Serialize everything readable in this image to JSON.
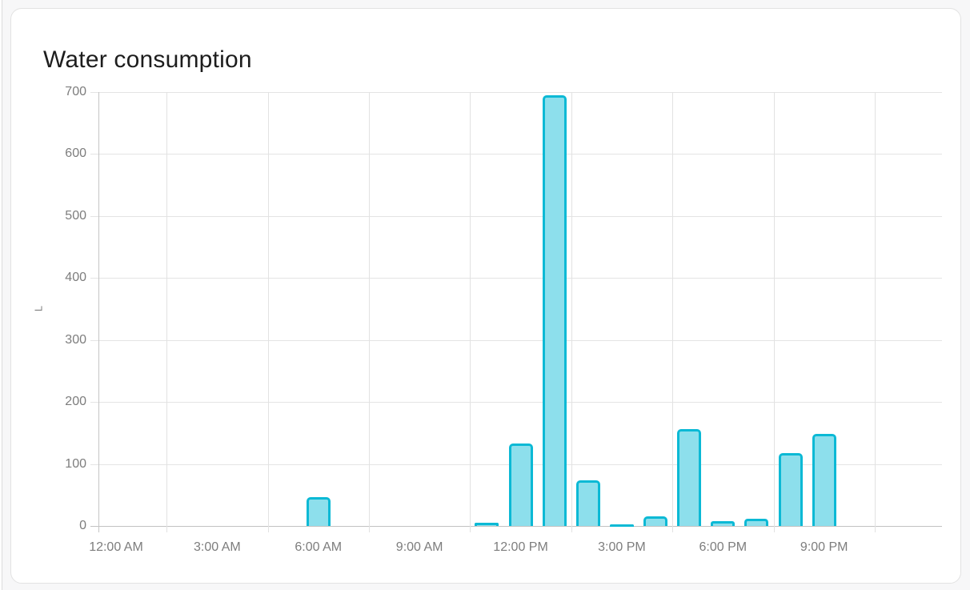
{
  "card": {
    "title": "Water consumption"
  },
  "chart_data": {
    "type": "bar",
    "title": "Water consumption",
    "xlabel": "",
    "ylabel": "L",
    "unit": "L",
    "ylim": [
      0,
      700
    ],
    "y_ticks": [
      0,
      100,
      200,
      300,
      400,
      500,
      600,
      700
    ],
    "x_tick_labels": [
      "12:00 AM",
      "3:00 AM",
      "6:00 AM",
      "9:00 AM",
      "12:00 PM",
      "3:00 PM",
      "6:00 PM",
      "9:00 PM"
    ],
    "x_tick_hours": [
      0,
      3,
      6,
      9,
      12,
      15,
      18,
      21
    ],
    "grid": true,
    "legend": false,
    "bars": [
      {
        "time": "6:00 AM",
        "hour": 6,
        "value": 46
      },
      {
        "time": "11:00 AM",
        "hour": 11,
        "value": 5
      },
      {
        "time": "12:00 PM",
        "hour": 12,
        "value": 133
      },
      {
        "time": "1:00 PM",
        "hour": 13,
        "value": 695
      },
      {
        "time": "2:00 PM",
        "hour": 14,
        "value": 73
      },
      {
        "time": "3:00 PM",
        "hour": 15,
        "value": 2
      },
      {
        "time": "4:00 PM",
        "hour": 16,
        "value": 16
      },
      {
        "time": "5:00 PM",
        "hour": 17,
        "value": 156
      },
      {
        "time": "6:00 PM",
        "hour": 18,
        "value": 8
      },
      {
        "time": "7:00 PM",
        "hour": 19,
        "value": 11
      },
      {
        "time": "8:00 PM",
        "hour": 20,
        "value": 118
      },
      {
        "time": "9:00 PM",
        "hour": 21,
        "value": 149
      }
    ],
    "colors": {
      "bar_fill": "#8ddfec",
      "bar_border": "#0bb9d5"
    }
  }
}
